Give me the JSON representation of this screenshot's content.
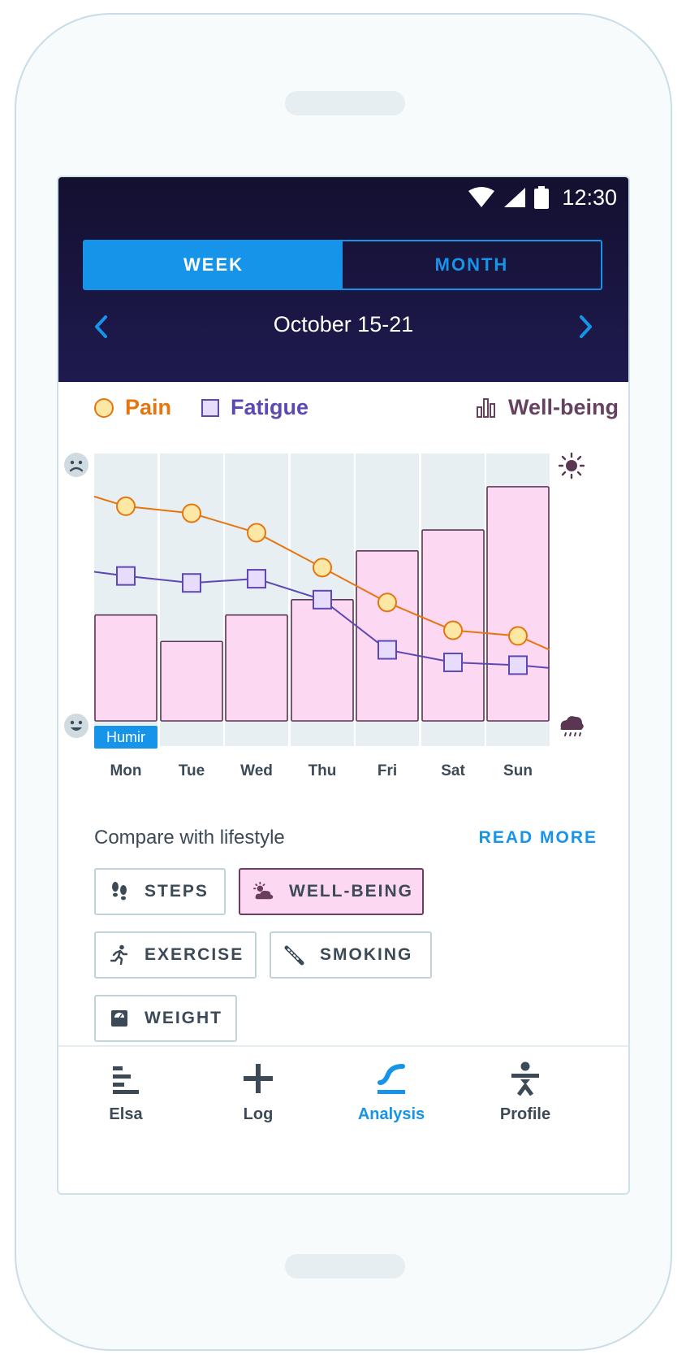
{
  "status_bar": {
    "time": "12:30"
  },
  "period_toggle": {
    "week_label": "WEEK",
    "month_label": "MONTH",
    "selected": "WEEK"
  },
  "date_nav": {
    "label": "October 15-21"
  },
  "legend": {
    "pain": "Pain",
    "fatigue": "Fatigue",
    "wellbeing": "Well-being"
  },
  "chart_data": {
    "type": "bar",
    "categories": [
      "Mon",
      "Tue",
      "Wed",
      "Thu",
      "Fri",
      "Sat",
      "Sun"
    ],
    "y_scale": "0 (happy face, bottom) to 10 (sad face, top)",
    "right_scale": "storm cloud (bottom) to sun (top)",
    "ylim": [
      0,
      10
    ],
    "series": [
      {
        "name": "Well-being",
        "kind": "bar",
        "values": [
          3.8,
          2.85,
          3.8,
          4.35,
          6.1,
          6.85,
          8.4
        ]
      },
      {
        "name": "Pain",
        "kind": "line",
        "marker": "circle",
        "values": [
          7.7,
          7.45,
          6.75,
          5.5,
          4.25,
          3.25,
          3.05
        ]
      },
      {
        "name": "Fatigue",
        "kind": "line",
        "marker": "square",
        "values": [
          5.2,
          4.95,
          5.1,
          4.35,
          2.55,
          2.1,
          2.0
        ]
      }
    ],
    "line_ends": {
      "pain_start": 8.05,
      "pain_end": 2.55,
      "fatigue_start": 5.35,
      "fatigue_end": 1.9
    },
    "annotations": [
      {
        "day": "Mon",
        "text": "Humir"
      }
    ],
    "grid": false,
    "legend_placement": "top"
  },
  "compare": {
    "title": "Compare with lifestyle",
    "read_more": "READ MORE",
    "chips": [
      {
        "label": "STEPS",
        "icon": "footprints-icon",
        "active": false
      },
      {
        "label": "WELL-BEING",
        "icon": "sun-cloud-icon",
        "active": true
      },
      {
        "label": "EXERCISE",
        "icon": "running-person-icon",
        "active": false
      },
      {
        "label": "SMOKING",
        "icon": "cigarette-icon",
        "active": false
      },
      {
        "label": "WEIGHT",
        "icon": "scale-icon",
        "active": false
      }
    ]
  },
  "tabbar": {
    "items": [
      {
        "label": "Elsa",
        "icon": "elsa-bars-icon"
      },
      {
        "label": "Log",
        "icon": "plus-icon"
      },
      {
        "label": "Analysis",
        "icon": "analysis-curve-icon",
        "active": true
      },
      {
        "label": "Profile",
        "icon": "person-icon"
      }
    ]
  },
  "colors": {
    "header_bg": "#17133d",
    "accent": "#1594ea",
    "pain": "#e5760f",
    "fatigue": "#5e48b4",
    "wellbeing_bar": "#fdd8f2",
    "wellbeing_text": "#66425f",
    "column_bg": "#e8eff2"
  }
}
